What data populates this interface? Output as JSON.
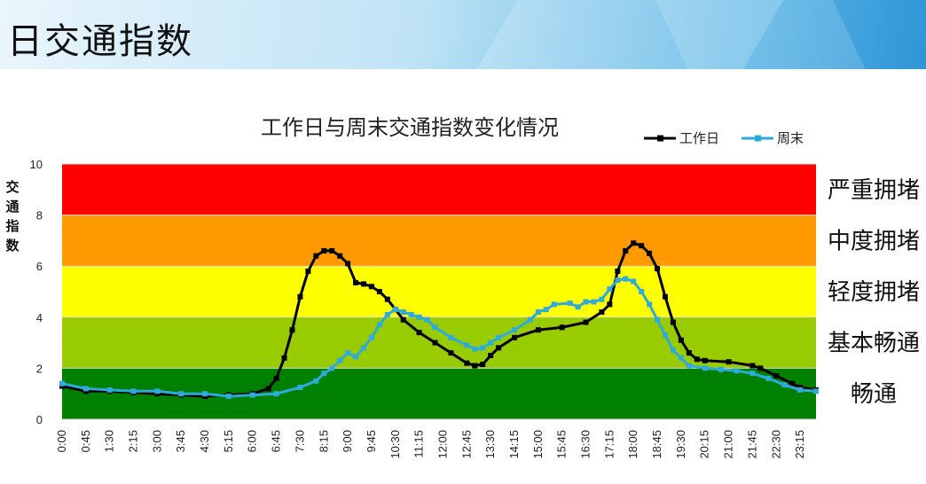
{
  "page": {
    "title": "日交通指数"
  },
  "chart_data": {
    "type": "line",
    "title": "工作日与周末交通指数变化情况",
    "ylabel": "交通指数",
    "xlabel": "",
    "ylim": [
      0,
      10
    ],
    "yticks": [
      0,
      2,
      4,
      6,
      8,
      10
    ],
    "xticks": [
      "0:00",
      "0:45",
      "1:30",
      "2:15",
      "3:00",
      "3:45",
      "4:30",
      "5:15",
      "6:00",
      "6:45",
      "7:30",
      "8:15",
      "9:00",
      "9:45",
      "10:30",
      "11:15",
      "12:00",
      "12:45",
      "13:30",
      "14:15",
      "15:00",
      "15:45",
      "16:30",
      "17:15",
      "18:00",
      "18:45",
      "19:30",
      "20:15",
      "21:00",
      "21:45",
      "22:30",
      "23:15"
    ],
    "legend_position": "top-right",
    "bands": [
      {
        "from": 8,
        "to": 10,
        "label": "严重拥堵",
        "color": "#ff0000"
      },
      {
        "from": 6,
        "to": 8,
        "label": "中度拥堵",
        "color": "#ff9900"
      },
      {
        "from": 4,
        "to": 6,
        "label": "轻度拥堵",
        "color": "#ffff00"
      },
      {
        "from": 2,
        "to": 4,
        "label": "基本畅通",
        "color": "#99cc00"
      },
      {
        "from": 0,
        "to": 2,
        "label": "畅通",
        "color": "#008000"
      }
    ],
    "series": [
      {
        "name": "工作日",
        "color": "#000000",
        "points": [
          [
            "0:00",
            1.3
          ],
          [
            "0:45",
            1.1
          ],
          [
            "1:30",
            1.1
          ],
          [
            "2:15",
            1.05
          ],
          [
            "3:00",
            1.0
          ],
          [
            "3:45",
            0.95
          ],
          [
            "4:30",
            0.9
          ],
          [
            "5:15",
            0.95
          ],
          [
            "6:00",
            1.0
          ],
          [
            "6:30",
            1.2
          ],
          [
            "6:45",
            1.6
          ],
          [
            "7:00",
            2.4
          ],
          [
            "7:15",
            3.5
          ],
          [
            "7:30",
            4.8
          ],
          [
            "7:45",
            5.8
          ],
          [
            "8:00",
            6.4
          ],
          [
            "8:15",
            6.6
          ],
          [
            "8:30",
            6.6
          ],
          [
            "8:45",
            6.4
          ],
          [
            "9:00",
            6.1
          ],
          [
            "9:15",
            5.35
          ],
          [
            "9:30",
            5.3
          ],
          [
            "9:45",
            5.2
          ],
          [
            "10:00",
            5.0
          ],
          [
            "10:15",
            4.7
          ],
          [
            "10:30",
            4.3
          ],
          [
            "10:45",
            3.9
          ],
          [
            "11:15",
            3.4
          ],
          [
            "11:45",
            3.0
          ],
          [
            "12:15",
            2.6
          ],
          [
            "12:45",
            2.2
          ],
          [
            "13:00",
            2.1
          ],
          [
            "13:15",
            2.15
          ],
          [
            "13:30",
            2.5
          ],
          [
            "13:45",
            2.8
          ],
          [
            "14:15",
            3.2
          ],
          [
            "15:00",
            3.5
          ],
          [
            "15:45",
            3.6
          ],
          [
            "16:30",
            3.8
          ],
          [
            "17:00",
            4.2
          ],
          [
            "17:15",
            4.5
          ],
          [
            "17:30",
            5.8
          ],
          [
            "17:45",
            6.6
          ],
          [
            "18:00",
            6.9
          ],
          [
            "18:15",
            6.8
          ],
          [
            "18:30",
            6.5
          ],
          [
            "18:45",
            5.9
          ],
          [
            "19:00",
            4.8
          ],
          [
            "19:15",
            3.8
          ],
          [
            "19:30",
            3.1
          ],
          [
            "19:45",
            2.6
          ],
          [
            "20:00",
            2.35
          ],
          [
            "20:15",
            2.3
          ],
          [
            "21:00",
            2.25
          ],
          [
            "21:45",
            2.1
          ],
          [
            "22:00",
            2.0
          ],
          [
            "22:30",
            1.7
          ],
          [
            "23:00",
            1.4
          ],
          [
            "23:15",
            1.25
          ],
          [
            "23:45",
            1.15
          ]
        ]
      },
      {
        "name": "周末",
        "color": "#2eaadc",
        "points": [
          [
            "0:00",
            1.4
          ],
          [
            "0:45",
            1.2
          ],
          [
            "1:30",
            1.15
          ],
          [
            "2:15",
            1.1
          ],
          [
            "3:00",
            1.1
          ],
          [
            "3:45",
            1.0
          ],
          [
            "4:30",
            1.0
          ],
          [
            "5:15",
            0.9
          ],
          [
            "6:00",
            0.95
          ],
          [
            "6:45",
            1.0
          ],
          [
            "7:30",
            1.25
          ],
          [
            "8:00",
            1.5
          ],
          [
            "8:15",
            1.8
          ],
          [
            "8:30",
            2.0
          ],
          [
            "8:45",
            2.3
          ],
          [
            "9:00",
            2.6
          ],
          [
            "9:15",
            2.45
          ],
          [
            "9:30",
            2.8
          ],
          [
            "9:45",
            3.2
          ],
          [
            "10:00",
            3.7
          ],
          [
            "10:15",
            4.1
          ],
          [
            "10:30",
            4.3
          ],
          [
            "10:45",
            4.2
          ],
          [
            "11:00",
            4.1
          ],
          [
            "11:15",
            4.0
          ],
          [
            "11:30",
            3.9
          ],
          [
            "11:45",
            3.6
          ],
          [
            "12:15",
            3.2
          ],
          [
            "12:45",
            2.9
          ],
          [
            "13:00",
            2.75
          ],
          [
            "13:15",
            2.8
          ],
          [
            "13:30",
            3.0
          ],
          [
            "13:45",
            3.2
          ],
          [
            "14:15",
            3.5
          ],
          [
            "14:45",
            3.9
          ],
          [
            "15:00",
            4.2
          ],
          [
            "15:15",
            4.3
          ],
          [
            "15:30",
            4.5
          ],
          [
            "16:00",
            4.55
          ],
          [
            "16:15",
            4.4
          ],
          [
            "16:30",
            4.6
          ],
          [
            "16:45",
            4.6
          ],
          [
            "17:00",
            4.7
          ],
          [
            "17:15",
            5.1
          ],
          [
            "17:30",
            5.45
          ],
          [
            "17:45",
            5.5
          ],
          [
            "18:00",
            5.4
          ],
          [
            "18:15",
            5.0
          ],
          [
            "18:30",
            4.5
          ],
          [
            "18:45",
            3.9
          ],
          [
            "19:00",
            3.3
          ],
          [
            "19:15",
            2.7
          ],
          [
            "19:30",
            2.4
          ],
          [
            "19:45",
            2.1
          ],
          [
            "20:15",
            2.0
          ],
          [
            "20:45",
            1.95
          ],
          [
            "21:15",
            1.9
          ],
          [
            "21:45",
            1.8
          ],
          [
            "22:15",
            1.6
          ],
          [
            "22:45",
            1.35
          ],
          [
            "23:15",
            1.15
          ],
          [
            "23:45",
            1.1
          ]
        ]
      }
    ]
  }
}
